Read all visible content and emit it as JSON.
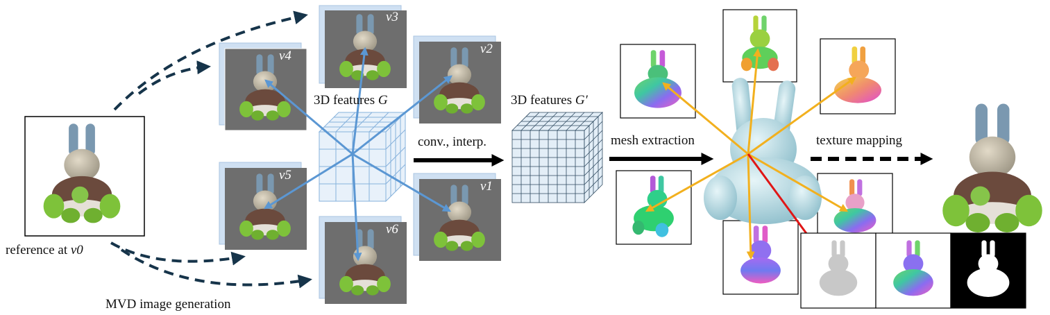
{
  "labels": {
    "reference": "reference at",
    "reference_view": "v0",
    "mvd": "MVD image generation",
    "features_g": "3D features",
    "features_g_symbol": "G",
    "features_g2": "3D features",
    "features_g2_symbol": "G′",
    "conv": "conv., interp.",
    "mesh": "mesh extraction",
    "texture": "texture mapping"
  },
  "views": [
    {
      "id": "v4",
      "label": "v4"
    },
    {
      "id": "v3",
      "label": "v3"
    },
    {
      "id": "v2",
      "label": "v2"
    },
    {
      "id": "v5",
      "label": "v5"
    },
    {
      "id": "v1",
      "label": "v1"
    },
    {
      "id": "v6",
      "label": "v6"
    }
  ],
  "colors": {
    "dashed_arrow": "#16344a",
    "blue_ray": "#5b97d3",
    "yellow_ray": "#f2b01e",
    "red_ray": "#e01616",
    "mesh": "#b5dde6",
    "gray_panel": "#6e6e6e",
    "grid": "#9ec3e6"
  },
  "icons": {
    "reference": "bunny-toy-car-icon",
    "mesh": "bunny-mesh-icon",
    "final": "textured-bunny-icon",
    "normal": "normal-map-bunny-icon",
    "depth": "depth-map-icon",
    "mask": "silhouette-mask-icon"
  }
}
